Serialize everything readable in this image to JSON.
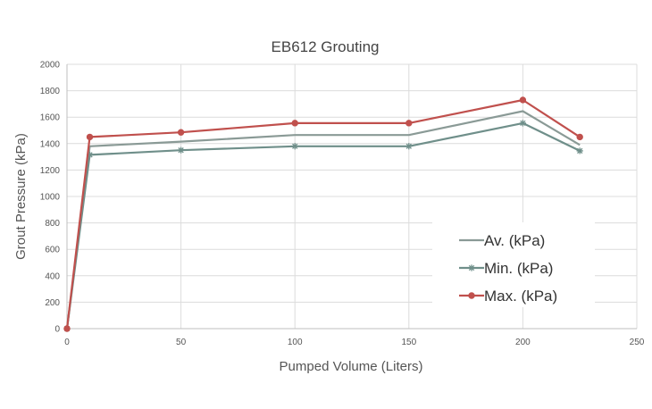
{
  "chart_data": {
    "type": "line",
    "title": "EB612 Grouting",
    "xlabel": "Pumped Volume (Liters)",
    "ylabel": "Grout Pressure (kPa)",
    "xlim": [
      0,
      250
    ],
    "ylim": [
      0,
      2000
    ],
    "xticks": [
      0,
      50,
      100,
      150,
      200,
      250
    ],
    "yticks": [
      0,
      200,
      400,
      600,
      800,
      1000,
      1200,
      1400,
      1600,
      1800,
      2000
    ],
    "grid": true,
    "legend_position": "bottom-right",
    "series": [
      {
        "name": "Av. (kPa)",
        "color": "#8a9a96",
        "marker": "none",
        "x": [
          0,
          10,
          50,
          100,
          150,
          200,
          225
        ],
        "y": [
          0,
          1380,
          1415,
          1465,
          1465,
          1645,
          1390
        ]
      },
      {
        "name": "Min. (kPa)",
        "color": "#6f8f8a",
        "marker": "star",
        "x": [
          0,
          10,
          50,
          100,
          150,
          200,
          225
        ],
        "y": [
          0,
          1315,
          1350,
          1380,
          1380,
          1555,
          1345
        ]
      },
      {
        "name": "Max. (kPa)",
        "color": "#c0504d",
        "marker": "circle",
        "x": [
          0,
          10,
          50,
          100,
          150,
          200,
          225
        ],
        "y": [
          0,
          1450,
          1485,
          1555,
          1555,
          1730,
          1450
        ]
      }
    ]
  }
}
